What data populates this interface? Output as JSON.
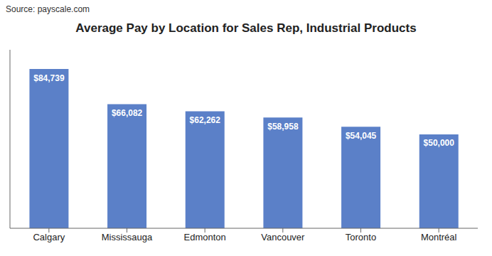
{
  "chart_data": {
    "type": "bar",
    "title": "Average Pay by Location for Sales Rep, Industrial Products",
    "annotations": [
      "Source: payscale.com"
    ],
    "categories": [
      "Calgary",
      "Mississauga",
      "Edmonton",
      "Vancouver",
      "Toronto",
      "Montréal"
    ],
    "values": [
      84739,
      66082,
      62262,
      58958,
      54045,
      50000
    ],
    "value_labels": [
      "$84,739",
      "$66,082",
      "$62,262",
      "$58,958",
      "$54,045",
      "$50,000"
    ],
    "data_labels": true,
    "color": "#5B80C8",
    "ylim": [
      0,
      95000
    ],
    "grid": false,
    "tick_labels": "x"
  }
}
